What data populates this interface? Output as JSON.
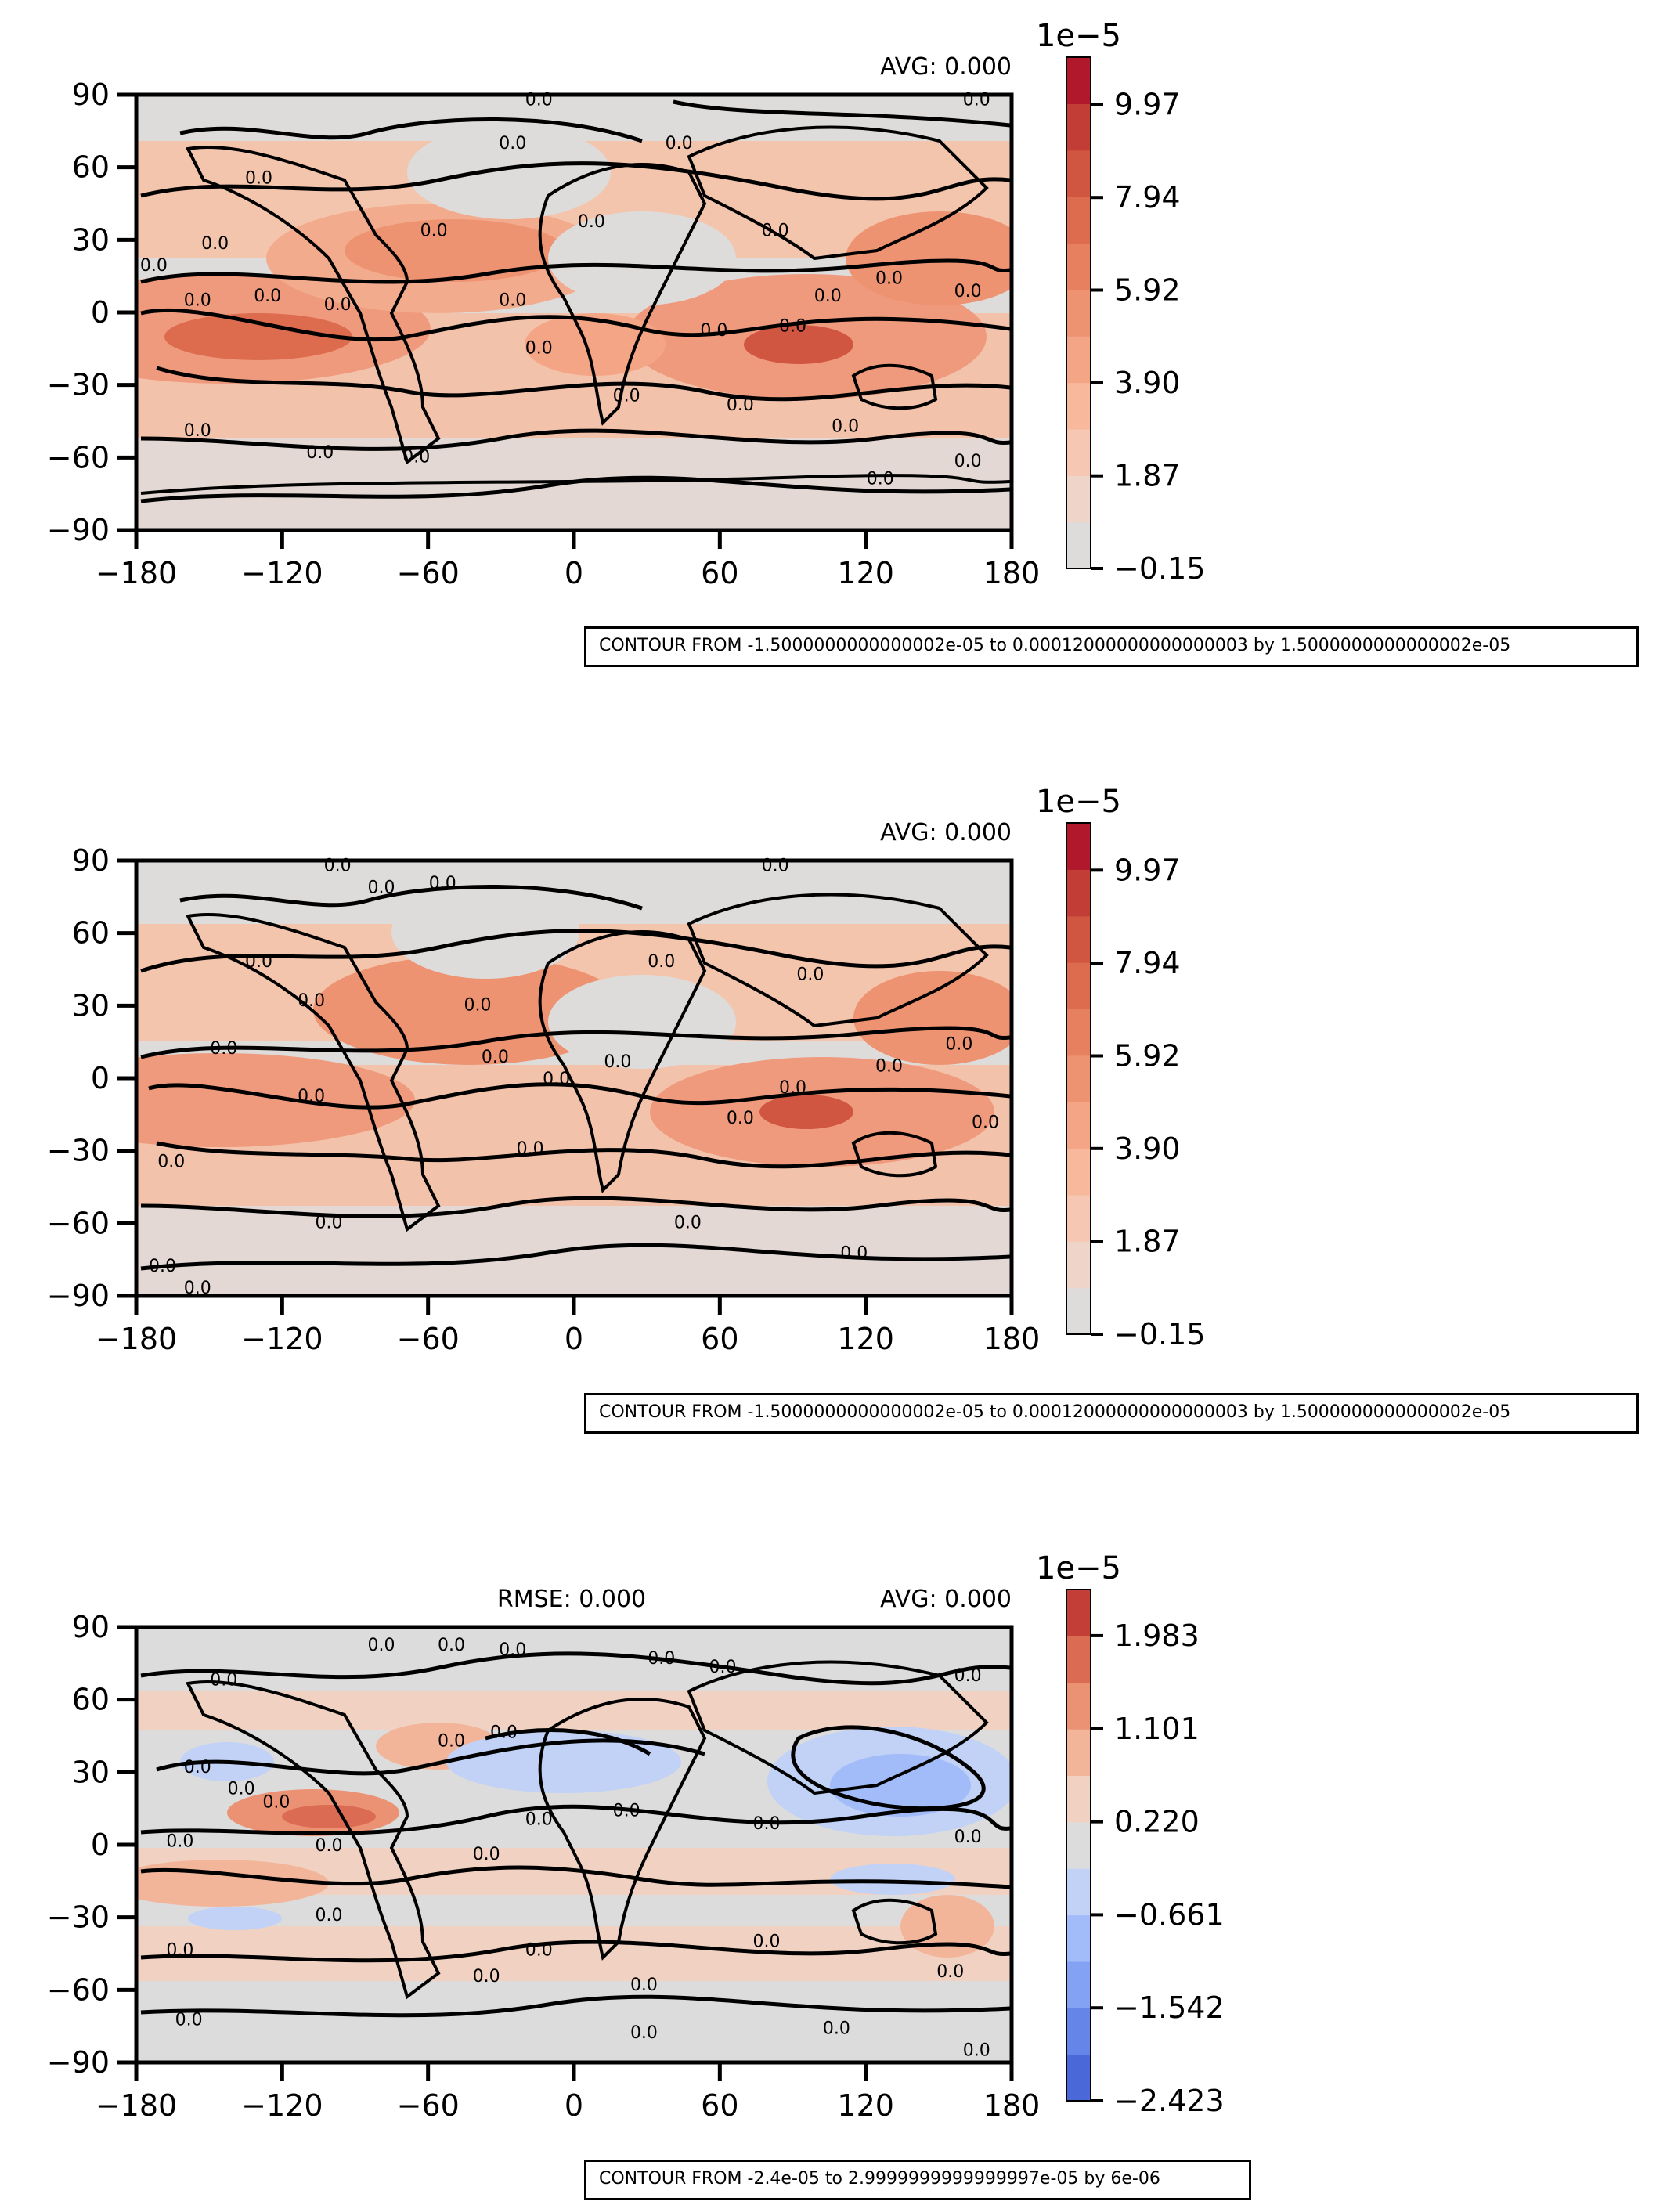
{
  "chart_data": [
    {
      "type": "heatmap",
      "title": "",
      "stat_right": "AVG: 0.000",
      "stat_left": "",
      "xlabel": "",
      "ylabel": "",
      "xlim": [
        -180,
        180
      ],
      "ylim": [
        -90,
        90
      ],
      "xticks": [
        -180,
        -120,
        -60,
        0,
        60,
        120,
        180
      ],
      "xtick_labels": [
        "−180",
        "−120",
        "−60",
        "0",
        "60",
        "120",
        "180"
      ],
      "yticks": [
        90,
        60,
        30,
        0,
        -30,
        -60,
        -90
      ],
      "ytick_labels": [
        "90",
        "60",
        "30",
        "0",
        "−30",
        "−60",
        "−90"
      ],
      "colorbar": {
        "offset_label": "1e−5",
        "range": [
          -0.15,
          11.0
        ],
        "ticks": [
          -0.15,
          1.87,
          3.9,
          5.92,
          7.94,
          9.97
        ],
        "tick_labels": [
          "−0.15",
          "1.87",
          "3.90",
          "5.92",
          "7.94",
          "9.97"
        ],
        "colors": [
          "#dedcdb",
          "#efd5c9",
          "#f6c7b2",
          "#f7b89c",
          "#f4a586",
          "#ee9372",
          "#e7805f",
          "#dd6c4f",
          "#d05641",
          "#c13d36",
          "#b2182b"
        ]
      },
      "contour_label": "0.0",
      "contour_label_count": 28,
      "note": "CONTOUR FROM -1.5000000000000002e-05 to 0.00012000000000000003 by 1.5000000000000002e-05"
    },
    {
      "type": "heatmap",
      "title": "",
      "stat_right": "AVG: 0.000",
      "stat_left": "",
      "xlabel": "",
      "ylabel": "",
      "xlim": [
        -180,
        180
      ],
      "ylim": [
        -90,
        90
      ],
      "xticks": [
        -180,
        -120,
        -60,
        0,
        60,
        120,
        180
      ],
      "xtick_labels": [
        "−180",
        "−120",
        "−60",
        "0",
        "60",
        "120",
        "180"
      ],
      "yticks": [
        90,
        60,
        30,
        0,
        -30,
        -60,
        -90
      ],
      "ytick_labels": [
        "90",
        "60",
        "30",
        "0",
        "−30",
        "−60",
        "−90"
      ],
      "colorbar": {
        "offset_label": "1e−5",
        "range": [
          -0.15,
          11.0
        ],
        "ticks": [
          -0.15,
          1.87,
          3.9,
          5.92,
          7.94,
          9.97
        ],
        "tick_labels": [
          "−0.15",
          "1.87",
          "3.90",
          "5.92",
          "7.94",
          "9.97"
        ],
        "colors": [
          "#dedcdb",
          "#efd5c9",
          "#f6c7b2",
          "#f7b89c",
          "#f4a586",
          "#ee9372",
          "#e7805f",
          "#dd6c4f",
          "#d05641",
          "#c13d36",
          "#b2182b"
        ]
      },
      "contour_label": "0.0",
      "contour_label_count": 26,
      "note": "CONTOUR FROM -1.5000000000000002e-05 to 0.00012000000000000003 by 1.5000000000000002e-05"
    },
    {
      "type": "heatmap",
      "title": "",
      "stat_right": "AVG: 0.000",
      "stat_left": "RMSE: 0.000",
      "xlabel": "",
      "ylabel": "",
      "xlim": [
        -180,
        180
      ],
      "ylim": [
        -90,
        90
      ],
      "xticks": [
        -180,
        -120,
        -60,
        0,
        60,
        120,
        180
      ],
      "xtick_labels": [
        "−180",
        "−120",
        "−60",
        "0",
        "60",
        "120",
        "180"
      ],
      "yticks": [
        90,
        60,
        30,
        0,
        -30,
        -60,
        -90
      ],
      "ytick_labels": [
        "90",
        "60",
        "30",
        "0",
        "−30",
        "−60",
        "−90"
      ],
      "colorbar": {
        "offset_label": "1e−5",
        "range": [
          -2.423,
          2.42
        ],
        "ticks": [
          -2.423,
          -1.542,
          -0.661,
          0.22,
          1.101,
          1.983
        ],
        "tick_labels": [
          "−2.423",
          "−1.542",
          "−0.661",
          "0.220",
          "1.101",
          "1.983"
        ],
        "colors": [
          "#4a68d8",
          "#6585e8",
          "#83a2f4",
          "#a2bcf9",
          "#c1d2f6",
          "#dcdcdc",
          "#f1d2c2",
          "#f3b59a",
          "#ec9274",
          "#dc6b53",
          "#c43e38"
        ]
      },
      "contour_label": "0.0",
      "contour_label_count": 30,
      "note": "CONTOUR FROM -2.4e-05 to 2.9999999999999997e-05 by 6e-06"
    }
  ]
}
